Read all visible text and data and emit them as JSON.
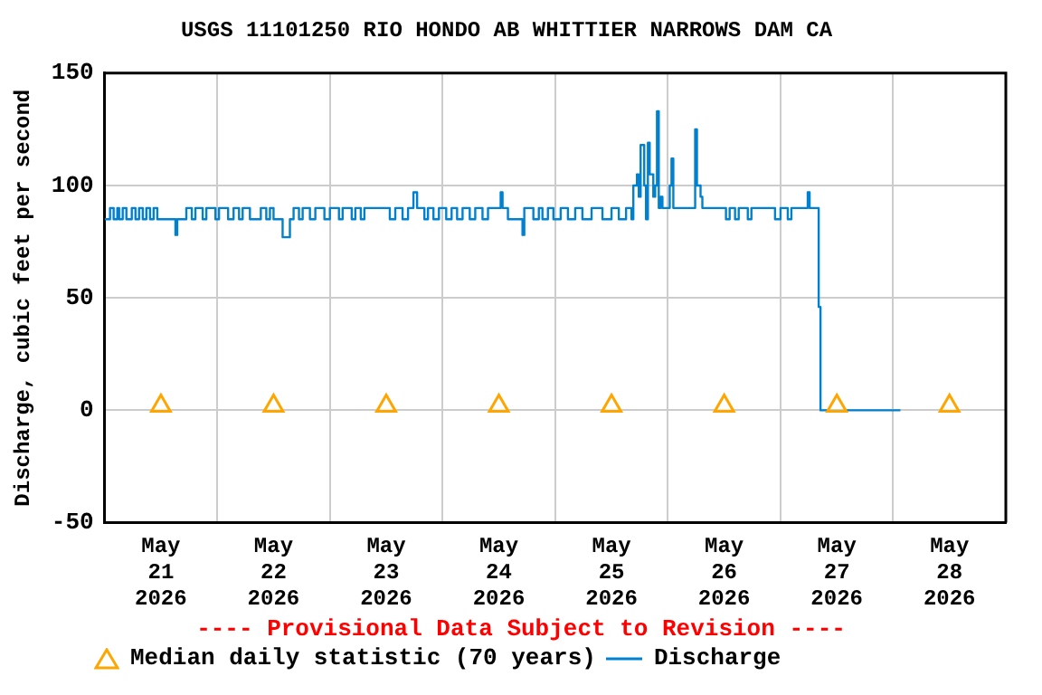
{
  "chart_data": {
    "type": "step",
    "title": "USGS 11101250 RIO HONDO AB WHITTIER NARROWS DAM CA",
    "ylabel": "Discharge, cubic feet per second",
    "annotations": [
      "---- Provisional Data Subject to Revision ----"
    ],
    "xlim": [
      "2026-05-21T00:00",
      "2026-05-29T00:00"
    ],
    "xticks": [
      {
        "value": "2026-05-21T00:00",
        "label": null
      },
      {
        "value": "2026-05-21T12:00",
        "label": "May\n21\n2026"
      },
      {
        "value": "2026-05-22T00:00",
        "label": null
      },
      {
        "value": "2026-05-22T12:00",
        "label": "May\n22\n2026"
      },
      {
        "value": "2026-05-23T00:00",
        "label": null
      },
      {
        "value": "2026-05-23T12:00",
        "label": "May\n23\n2026"
      },
      {
        "value": "2026-05-24T00:00",
        "label": null
      },
      {
        "value": "2026-05-24T12:00",
        "label": "May\n24\n2026"
      },
      {
        "value": "2026-05-25T00:00",
        "label": null
      },
      {
        "value": "2026-05-25T12:00",
        "label": "May\n25\n2026"
      },
      {
        "value": "2026-05-26T00:00",
        "label": null
      },
      {
        "value": "2026-05-26T12:00",
        "label": "May\n26\n2026"
      },
      {
        "value": "2026-05-27T00:00",
        "label": null
      },
      {
        "value": "2026-05-27T12:00",
        "label": "May\n27\n2026"
      },
      {
        "value": "2026-05-28T00:00",
        "label": null
      },
      {
        "value": "2026-05-28T12:00",
        "label": "May\n28\n2026"
      },
      {
        "value": "2026-05-29T00:00",
        "label": null
      }
    ],
    "ylim": [
      -50,
      150
    ],
    "yticks": [
      -50,
      0,
      50,
      100,
      150
    ],
    "grid": true,
    "legend": "bottom",
    "series": [
      {
        "name": "Median daily statistic (70 years)",
        "type": "scatter",
        "marker": "triangle",
        "color": "#ffa500",
        "x": [
          "2026-05-21T12:00",
          "2026-05-22T12:00",
          "2026-05-23T12:00",
          "2026-05-24T12:00",
          "2026-05-25T12:00",
          "2026-05-26T12:00",
          "2026-05-27T12:00",
          "2026-05-28T12:00"
        ],
        "values": [
          2,
          2,
          2,
          2,
          2,
          2,
          2,
          2
        ]
      },
      {
        "name": "Discharge",
        "color": "#0080d0",
        "x": [
          "2026-05-21T00:00",
          "2026-05-21T01:10",
          "2026-05-21T01:56",
          "2026-05-21T02:43",
          "2026-05-21T03:06",
          "2026-05-21T03:52",
          "2026-05-21T04:39",
          "2026-05-21T05:48",
          "2026-05-21T06:35",
          "2026-05-21T07:21",
          "2026-05-21T08:08",
          "2026-05-21T08:54",
          "2026-05-21T09:41",
          "2026-05-21T10:27",
          "2026-05-21T11:14",
          "2026-05-21T15:06",
          "2026-05-21T15:29",
          "2026-05-21T17:25",
          "2026-05-21T18:35",
          "2026-05-21T19:21",
          "2026-05-21T20:54",
          "2026-05-21T21:41",
          "2026-05-21T23:37",
          "2026-05-22T00:23",
          "2026-05-22T02:19",
          "2026-05-22T03:29",
          "2026-05-22T04:39",
          "2026-05-22T05:25",
          "2026-05-22T06:58",
          "2026-05-22T09:17",
          "2026-05-22T10:27",
          "2026-05-22T11:14",
          "2026-05-22T12:00",
          "2026-05-22T13:56",
          "2026-05-22T15:29",
          "2026-05-22T16:16",
          "2026-05-22T17:25",
          "2026-05-22T18:12",
          "2026-05-22T19:45",
          "2026-05-22T20:54",
          "2026-05-22T22:50",
          "2026-05-23T00:00",
          "2026-05-23T01:56",
          "2026-05-23T02:43",
          "2026-05-23T04:39",
          "2026-05-23T05:25",
          "2026-05-23T06:35",
          "2026-05-23T07:21",
          "2026-05-23T12:46",
          "2026-05-23T13:56",
          "2026-05-23T15:29",
          "2026-05-23T16:39",
          "2026-05-23T17:48",
          "2026-05-23T18:35",
          "2026-05-23T20:08",
          "2026-05-23T20:54",
          "2026-05-23T22:04",
          "2026-05-23T23:14",
          "2026-05-24T00:47",
          "2026-05-24T01:56",
          "2026-05-24T03:06",
          "2026-05-24T04:16",
          "2026-05-24T05:48",
          "2026-05-24T06:58",
          "2026-05-24T08:31",
          "2026-05-24T09:41",
          "2026-05-24T12:23",
          "2026-05-24T12:47",
          "2026-05-24T13:56",
          "2026-05-24T17:02",
          "2026-05-24T17:25",
          "2026-05-24T19:21",
          "2026-05-24T20:31",
          "2026-05-24T21:17",
          "2026-05-24T22:27",
          "2026-05-24T23:37",
          "2026-05-25T01:10",
          "2026-05-25T02:43",
          "2026-05-25T04:16",
          "2026-05-25T05:48",
          "2026-05-25T07:45",
          "2026-05-25T10:04",
          "2026-05-25T12:00",
          "2026-05-25T13:33",
          "2026-05-25T15:06",
          "2026-05-25T16:15",
          "2026-05-25T16:39",
          "2026-05-25T17:25",
          "2026-05-25T17:48",
          "2026-05-25T18:12",
          "2026-05-25T18:58",
          "2026-05-25T19:21",
          "2026-05-25T19:45",
          "2026-05-25T20:08",
          "2026-05-25T20:54",
          "2026-05-25T21:18",
          "2026-05-25T21:41",
          "2026-05-25T22:04",
          "2026-05-25T22:27",
          "2026-05-25T22:51",
          "2026-05-26T00:24",
          "2026-05-26T00:47",
          "2026-05-26T01:10",
          "2026-05-26T05:49",
          "2026-05-26T06:12",
          "2026-05-26T06:58",
          "2026-05-26T07:21",
          "2026-05-26T12:23",
          "2026-05-26T13:10",
          "2026-05-26T14:19",
          "2026-05-26T15:06",
          "2026-05-26T17:02",
          "2026-05-26T17:48",
          "2026-05-26T22:50",
          "2026-05-27T00:00",
          "2026-05-27T01:33",
          "2026-05-27T02:19",
          "2026-05-27T05:48",
          "2026-05-27T06:12",
          "2026-05-27T08:08",
          "2026-05-27T08:31",
          "2026-05-28T01:33"
        ],
        "values": [
          85,
          90,
          85,
          90,
          85,
          90,
          85,
          90,
          85,
          90,
          85,
          90,
          85,
          90,
          85,
          78,
          85,
          90,
          85,
          90,
          85,
          90,
          85,
          90,
          85,
          90,
          85,
          90,
          85,
          90,
          85,
          90,
          85,
          77,
          85,
          90,
          85,
          90,
          85,
          90,
          85,
          90,
          85,
          90,
          85,
          90,
          85,
          90,
          85,
          90,
          85,
          90,
          97,
          90,
          85,
          90,
          85,
          90,
          85,
          90,
          85,
          90,
          85,
          90,
          85,
          90,
          97,
          90,
          85,
          78,
          90,
          85,
          90,
          85,
          90,
          85,
          90,
          85,
          90,
          85,
          90,
          85,
          90,
          85,
          90,
          85,
          100,
          105,
          95,
          118,
          100,
          85,
          119,
          105,
          95,
          100,
          133,
          90,
          95,
          90,
          100,
          112,
          90,
          125,
          100,
          95,
          90,
          85,
          90,
          85,
          90,
          85,
          90,
          85,
          90,
          85,
          90,
          97,
          90,
          46,
          0,
          0
        ]
      }
    ]
  }
}
